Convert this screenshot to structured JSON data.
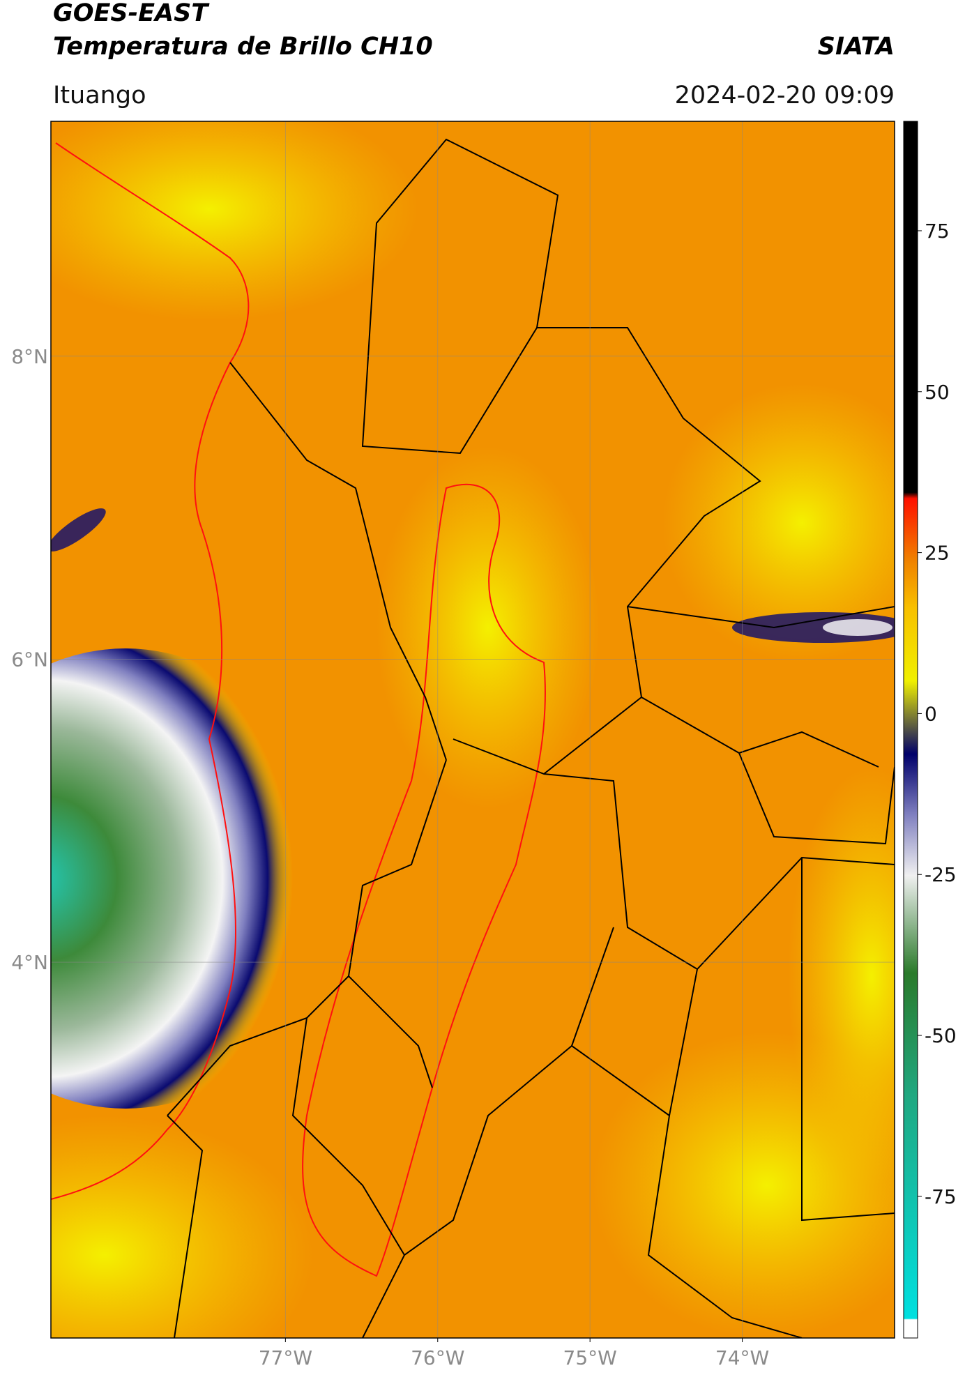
{
  "header": {
    "satellite": "GOES-EAST",
    "product": "Temperatura de Brillo CH10",
    "source": "SIATA",
    "location": "Ituango",
    "timestamp": "2024-02-20 09:09"
  },
  "map": {
    "xlim": [
      -78.54,
      -73.0
    ],
    "ylim": [
      1.52,
      9.55
    ],
    "xticks": [
      {
        "value": -77,
        "label": "77°W"
      },
      {
        "value": -76,
        "label": "76°W"
      },
      {
        "value": -75,
        "label": "75°W"
      },
      {
        "value": -74,
        "label": "74°W"
      }
    ],
    "yticks": [
      {
        "value": 8,
        "label": "8°N"
      },
      {
        "value": 6,
        "label": "6°N"
      },
      {
        "value": 4,
        "label": "4°N"
      }
    ]
  },
  "colorbar": {
    "lim": [
      -97,
      92
    ],
    "ticks": [
      75,
      50,
      25,
      0,
      -25,
      -50,
      -75
    ]
  }
}
